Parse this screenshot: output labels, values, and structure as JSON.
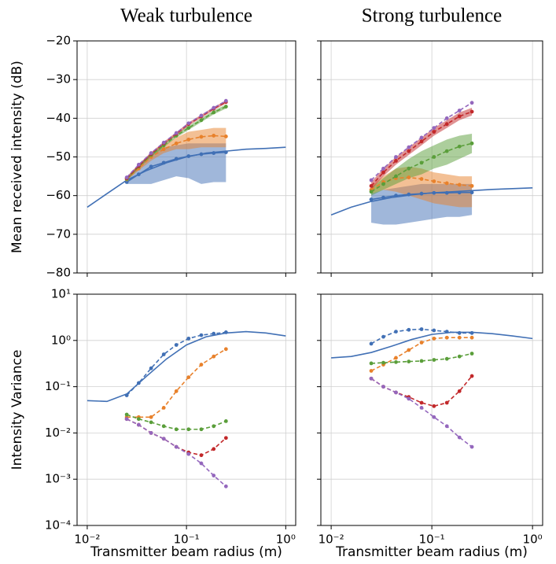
{
  "chart_data": [
    {
      "type": "line",
      "title": "Weak turbulence",
      "ylabel": "Mean received intensity (dB)",
      "xscale": "log",
      "yscale": "linear",
      "grid": true,
      "xlim": [
        0.0079,
        1.26
      ],
      "xticks": [
        0.01,
        0.1,
        1
      ],
      "ylim": [
        -80,
        -20
      ],
      "yticks": [
        {
          "value": -80,
          "label": "−80"
        },
        {
          "value": -70,
          "label": "−70"
        },
        {
          "value": -60,
          "label": "−60"
        },
        {
          "value": -50,
          "label": "−50"
        },
        {
          "value": -40,
          "label": "−40"
        },
        {
          "value": -30,
          "label": "−30"
        },
        {
          "value": -20,
          "label": "−20"
        }
      ],
      "series": [
        {
          "color": "#4170b5",
          "linestyle": "solid",
          "markers": false,
          "x": [
            0.01,
            0.0158,
            0.0251,
            0.0398,
            0.0631,
            0.1,
            0.158,
            0.251,
            0.398,
            0.631,
            1
          ],
          "values": [
            -63,
            -59.5,
            -56,
            -53.5,
            -51.5,
            -50,
            -49,
            -48.5,
            -48,
            -47.8,
            -47.5
          ]
        },
        {
          "color": "#4170b5",
          "linestyle": "solid",
          "markers": true,
          "x": [
            0.025,
            0.033,
            0.044,
            0.059,
            0.079,
            0.105,
            0.141,
            0.188,
            0.25
          ],
          "values": [
            -56.5,
            -54.5,
            -52.5,
            -51.5,
            -50.5,
            -49.8,
            -49.3,
            -49,
            -48.8
          ],
          "upper": [
            -56,
            -52,
            -49,
            -47.5,
            -47,
            -46.5,
            -46.5,
            -46.5,
            -46.5
          ],
          "lower": [
            -57,
            -57,
            -57,
            -56,
            -55,
            -55.5,
            -57,
            -56.5,
            -56.5
          ]
        },
        {
          "color": "#e8812b",
          "linestyle": "dashed",
          "markers": true,
          "x": [
            0.025,
            0.033,
            0.044,
            0.059,
            0.079,
            0.105,
            0.141,
            0.188,
            0.25
          ],
          "values": [
            -55.8,
            -53,
            -50,
            -48,
            -46.5,
            -45.5,
            -44.8,
            -44.5,
            -44.7
          ],
          "upper": [
            -55.5,
            -52.5,
            -49.5,
            -47,
            -45,
            -43.5,
            -43,
            -42.5,
            -42.5
          ],
          "lower": [
            -56,
            -53.5,
            -51,
            -49,
            -48,
            -48,
            -47.5,
            -47.5,
            -47.5
          ]
        },
        {
          "color": "#5a9e3a",
          "linestyle": "dashed",
          "markers": true,
          "x": [
            0.025,
            0.033,
            0.044,
            0.059,
            0.079,
            0.105,
            0.141,
            0.188,
            0.25
          ],
          "values": [
            -55.7,
            -52.5,
            -49.5,
            -47,
            -44.5,
            -42.5,
            -40.5,
            -38.5,
            -37
          ],
          "upper": [
            -55.2,
            -52,
            -49,
            -46.5,
            -44,
            -42,
            -40,
            -38,
            -36.5
          ],
          "lower": [
            -56.2,
            -53,
            -50,
            -47.5,
            -45,
            -43,
            -41,
            -39,
            -37.5
          ]
        },
        {
          "color": "#c2282a",
          "linestyle": "dashed",
          "markers": true,
          "x": [
            0.025,
            0.033,
            0.044,
            0.059,
            0.079,
            0.105,
            0.141,
            0.188,
            0.25
          ],
          "values": [
            -55.5,
            -52.3,
            -49.2,
            -46.5,
            -44,
            -41.5,
            -39.5,
            -37.5,
            -35.8
          ],
          "upper": [
            -55.1,
            -51.9,
            -48.8,
            -46.1,
            -43.6,
            -41.1,
            -39.1,
            -37.1,
            -35.4
          ],
          "lower": [
            -55.9,
            -52.7,
            -49.6,
            -46.9,
            -44.4,
            -41.9,
            -39.9,
            -37.9,
            -36.2
          ]
        },
        {
          "color": "#9467bd",
          "linestyle": "dashed",
          "markers": true,
          "x": [
            0.025,
            0.033,
            0.044,
            0.059,
            0.079,
            0.105,
            0.141,
            0.188,
            0.25
          ],
          "values": [
            -55.3,
            -52,
            -49,
            -46.3,
            -43.8,
            -41.3,
            -39.3,
            -37.3,
            -35.5
          ]
        }
      ]
    },
    {
      "type": "line",
      "title": "Strong turbulence",
      "xscale": "log",
      "yscale": "linear",
      "grid": true,
      "xlim": [
        0.0079,
        1.26
      ],
      "xticks": [
        0.01,
        0.1,
        1
      ],
      "ylim": [
        -80,
        -20
      ],
      "yticks": [
        -80,
        -70,
        -60,
        -50,
        -40,
        -30,
        -20
      ],
      "series": [
        {
          "color": "#4170b5",
          "linestyle": "solid",
          "markers": false,
          "x": [
            0.01,
            0.0158,
            0.0251,
            0.0398,
            0.0631,
            0.1,
            0.158,
            0.251,
            0.398,
            0.631,
            1
          ],
          "values": [
            -65,
            -63,
            -61.5,
            -60.5,
            -59.8,
            -59.3,
            -59,
            -58.7,
            -58.4,
            -58.2,
            -58
          ]
        },
        {
          "color": "#4170b5",
          "linestyle": "solid",
          "markers": true,
          "x": [
            0.025,
            0.033,
            0.044,
            0.059,
            0.079,
            0.105,
            0.141,
            0.188,
            0.25
          ],
          "values": [
            -61,
            -60.5,
            -60,
            -59.7,
            -59.5,
            -59.3,
            -59.3,
            -59.2,
            -59.2
          ],
          "upper": [
            -59.5,
            -58.5,
            -58,
            -57.5,
            -57,
            -57,
            -57,
            -57,
            -57
          ],
          "lower": [
            -67,
            -67.5,
            -67.5,
            -67,
            -66.5,
            -66,
            -65.5,
            -65.5,
            -65
          ]
        },
        {
          "color": "#e8812b",
          "linestyle": "dashed",
          "markers": true,
          "x": [
            0.025,
            0.033,
            0.044,
            0.059,
            0.079,
            0.105,
            0.141,
            0.188,
            0.25
          ],
          "values": [
            -58.5,
            -56.5,
            -55.5,
            -55.3,
            -55.7,
            -56.3,
            -56.8,
            -57.2,
            -57.5
          ],
          "upper": [
            -57.5,
            -55,
            -53,
            -52.5,
            -53,
            -54,
            -54.5,
            -55,
            -55
          ],
          "lower": [
            -59.5,
            -58.5,
            -59,
            -60,
            -61,
            -62,
            -62.5,
            -63,
            -63
          ]
        },
        {
          "color": "#5a9e3a",
          "linestyle": "dashed",
          "markers": true,
          "x": [
            0.025,
            0.033,
            0.044,
            0.059,
            0.079,
            0.105,
            0.141,
            0.188,
            0.25
          ],
          "values": [
            -59,
            -57,
            -55,
            -53,
            -51.5,
            -50,
            -48.5,
            -47.3,
            -46.5
          ],
          "upper": [
            -58,
            -55.5,
            -53,
            -50.5,
            -48.5,
            -47,
            -45.5,
            -44.5,
            -44
          ],
          "lower": [
            -60,
            -58.5,
            -57,
            -55.5,
            -54.5,
            -53,
            -52,
            -50.5,
            -49
          ]
        },
        {
          "color": "#c2282a",
          "linestyle": "dashed",
          "markers": true,
          "x": [
            0.025,
            0.033,
            0.044,
            0.059,
            0.079,
            0.105,
            0.141,
            0.188,
            0.25
          ],
          "values": [
            -57.5,
            -54,
            -51,
            -48.5,
            -46,
            -43.5,
            -41.5,
            -39.5,
            -38.3
          ],
          "upper": [
            -56.5,
            -53,
            -50,
            -47.5,
            -45,
            -42.5,
            -40.5,
            -38.5,
            -37.3
          ],
          "lower": [
            -58.5,
            -55,
            -52,
            -49.5,
            -47,
            -44.5,
            -42.5,
            -40.5,
            -39.3
          ]
        },
        {
          "color": "#9467bd",
          "linestyle": "dashed",
          "markers": true,
          "x": [
            0.025,
            0.033,
            0.044,
            0.059,
            0.079,
            0.105,
            0.141,
            0.188,
            0.25
          ],
          "values": [
            -56,
            -53,
            -50,
            -47.5,
            -45,
            -42.5,
            -40,
            -38,
            -36
          ]
        }
      ]
    },
    {
      "type": "line",
      "ylabel": "Intensity Variance",
      "xlabel": "Transmitter beam radius (m)",
      "xscale": "log",
      "yscale": "log",
      "grid": true,
      "xlim": [
        0.0079,
        1.26
      ],
      "xticks": [
        {
          "value": 0.01,
          "label": "10⁻²"
        },
        {
          "value": 0.1,
          "label": "10⁻¹"
        },
        {
          "value": 1,
          "label": "10⁰"
        }
      ],
      "ylim": [
        0.0001,
        10
      ],
      "yticks": [
        {
          "value": 0.0001,
          "label": "10⁻⁴"
        },
        {
          "value": 0.001,
          "label": "10⁻³"
        },
        {
          "value": 0.01,
          "label": "10⁻²"
        },
        {
          "value": 0.1,
          "label": "10⁻¹"
        },
        {
          "value": 1,
          "label": "10⁰"
        },
        {
          "value": 10,
          "label": "10¹"
        }
      ],
      "series": [
        {
          "color": "#4170b5",
          "linestyle": "solid",
          "markers": false,
          "x": [
            0.01,
            0.0158,
            0.0251,
            0.0398,
            0.0631,
            0.1,
            0.158,
            0.251,
            0.398,
            0.631,
            1
          ],
          "values": [
            0.05,
            0.048,
            0.07,
            0.17,
            0.4,
            0.8,
            1.2,
            1.45,
            1.55,
            1.45,
            1.25
          ]
        },
        {
          "color": "#4170b5",
          "linestyle": "dashed",
          "markers": true,
          "x": [
            0.025,
            0.033,
            0.044,
            0.059,
            0.079,
            0.105,
            0.141,
            0.188,
            0.25
          ],
          "values": [
            0.065,
            0.12,
            0.25,
            0.5,
            0.8,
            1.1,
            1.3,
            1.4,
            1.5
          ]
        },
        {
          "color": "#e8812b",
          "linestyle": "dashed",
          "markers": true,
          "x": [
            0.025,
            0.033,
            0.044,
            0.059,
            0.079,
            0.105,
            0.141,
            0.188,
            0.25
          ],
          "values": [
            0.022,
            0.022,
            0.022,
            0.035,
            0.08,
            0.16,
            0.3,
            0.45,
            0.65
          ]
        },
        {
          "color": "#5a9e3a",
          "linestyle": "dashed",
          "markers": true,
          "x": [
            0.025,
            0.033,
            0.044,
            0.059,
            0.079,
            0.105,
            0.141,
            0.188,
            0.25
          ],
          "values": [
            0.025,
            0.02,
            0.017,
            0.014,
            0.012,
            0.012,
            0.012,
            0.014,
            0.018
          ]
        },
        {
          "color": "#c2282a",
          "linestyle": "dashed",
          "markers": true,
          "x": [
            0.025,
            0.033,
            0.044,
            0.059,
            0.079,
            0.105,
            0.141,
            0.188,
            0.25
          ],
          "values": [
            0.02,
            0.015,
            0.01,
            0.0075,
            0.005,
            0.0038,
            0.0033,
            0.0045,
            0.0078
          ]
        },
        {
          "color": "#9467bd",
          "linestyle": "dashed",
          "markers": true,
          "x": [
            0.025,
            0.033,
            0.044,
            0.059,
            0.079,
            0.105,
            0.141,
            0.188,
            0.25
          ],
          "values": [
            0.02,
            0.015,
            0.01,
            0.0075,
            0.005,
            0.0035,
            0.0022,
            0.0012,
            0.0007
          ]
        }
      ]
    },
    {
      "type": "line",
      "xlabel": "Transmitter beam radius (m)",
      "xscale": "log",
      "yscale": "log",
      "grid": true,
      "xlim": [
        0.0079,
        1.26
      ],
      "xticks": [
        {
          "value": 0.01,
          "label": "10⁻²"
        },
        {
          "value": 0.1,
          "label": "10⁻¹"
        },
        {
          "value": 1,
          "label": "10⁰"
        }
      ],
      "ylim": [
        0.0001,
        10
      ],
      "yticks": [
        0.0001,
        0.001,
        0.01,
        0.1,
        1,
        10
      ],
      "series": [
        {
          "color": "#4170b5",
          "linestyle": "solid",
          "markers": false,
          "x": [
            0.01,
            0.0158,
            0.0251,
            0.0398,
            0.0631,
            0.1,
            0.158,
            0.251,
            0.398,
            0.631,
            1
          ],
          "values": [
            0.42,
            0.45,
            0.55,
            0.75,
            1.05,
            1.35,
            1.5,
            1.5,
            1.4,
            1.25,
            1.1
          ]
        },
        {
          "color": "#4170b5",
          "linestyle": "dashed",
          "markers": true,
          "x": [
            0.025,
            0.033,
            0.044,
            0.059,
            0.079,
            0.105,
            0.141,
            0.188,
            0.25
          ],
          "values": [
            0.85,
            1.2,
            1.55,
            1.7,
            1.75,
            1.65,
            1.55,
            1.45,
            1.45
          ]
        },
        {
          "color": "#e8812b",
          "linestyle": "dashed",
          "markers": true,
          "x": [
            0.025,
            0.033,
            0.044,
            0.059,
            0.079,
            0.105,
            0.141,
            0.188,
            0.25
          ],
          "values": [
            0.22,
            0.3,
            0.42,
            0.62,
            0.9,
            1.1,
            1.15,
            1.15,
            1.15
          ]
        },
        {
          "color": "#5a9e3a",
          "linestyle": "dashed",
          "markers": true,
          "x": [
            0.025,
            0.033,
            0.044,
            0.059,
            0.079,
            0.105,
            0.141,
            0.188,
            0.25
          ],
          "values": [
            0.32,
            0.33,
            0.34,
            0.35,
            0.36,
            0.38,
            0.4,
            0.45,
            0.52
          ]
        },
        {
          "color": "#c2282a",
          "linestyle": "dashed",
          "markers": true,
          "x": [
            0.025,
            0.033,
            0.044,
            0.059,
            0.079,
            0.105,
            0.141,
            0.188,
            0.25
          ],
          "values": [
            0.15,
            0.1,
            0.075,
            0.06,
            0.045,
            0.038,
            0.045,
            0.08,
            0.17
          ]
        },
        {
          "color": "#9467bd",
          "linestyle": "dashed",
          "markers": true,
          "x": [
            0.025,
            0.033,
            0.044,
            0.059,
            0.079,
            0.105,
            0.141,
            0.188,
            0.25
          ],
          "values": [
            0.15,
            0.1,
            0.075,
            0.055,
            0.035,
            0.022,
            0.014,
            0.008,
            0.005
          ]
        }
      ]
    }
  ]
}
